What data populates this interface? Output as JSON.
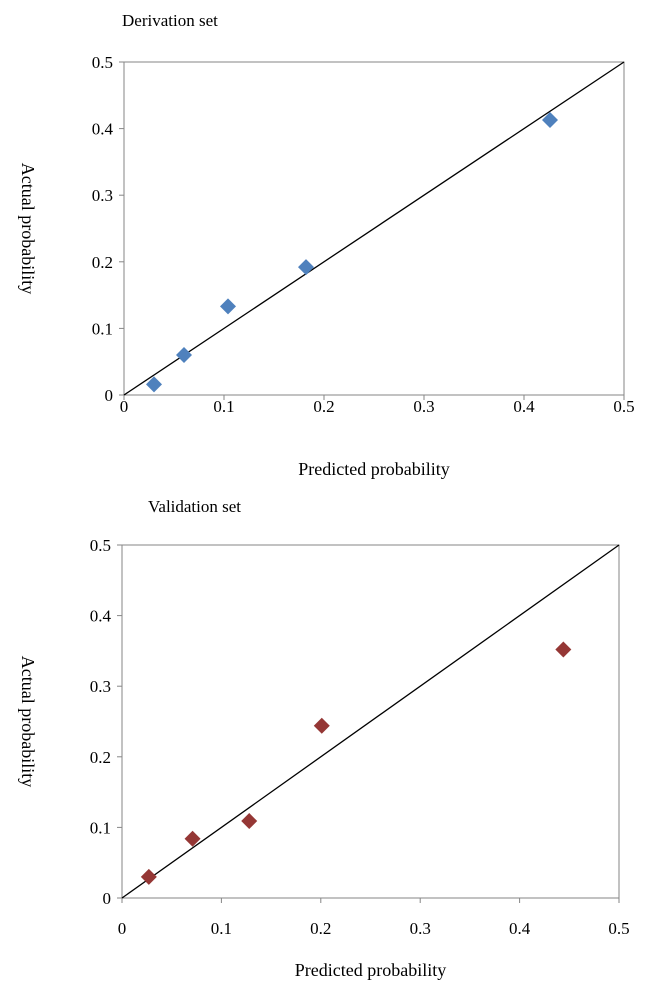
{
  "chart_data": [
    {
      "type": "scatter",
      "title": "Derivation set",
      "xlabel": "Predicted probability",
      "ylabel": "Actual probability",
      "xlim": [
        0,
        0.5
      ],
      "ylim": [
        0,
        0.5
      ],
      "xticks": [
        "0",
        "0.1",
        "0.2",
        "0.3",
        "0.4",
        "0.5"
      ],
      "yticks": [
        "0",
        "0.1",
        "0.2",
        "0.3",
        "0.4",
        "0.5"
      ],
      "grid": false,
      "reference_line": {
        "x": [
          0,
          0.5
        ],
        "y": [
          0,
          0.5
        ],
        "color": "#000000"
      },
      "series": [
        {
          "marker": "diamond",
          "color": "#4f81bd",
          "x": [
            0.03,
            0.06,
            0.104,
            0.182,
            0.426
          ],
          "y": [
            0.016,
            0.06,
            0.133,
            0.192,
            0.413
          ]
        }
      ]
    },
    {
      "type": "scatter",
      "title": "Validation set",
      "xlabel": "Predicted probability",
      "ylabel": "Actual probability",
      "xlim": [
        0,
        0.5
      ],
      "ylim": [
        0,
        0.5
      ],
      "xticks": [
        "0",
        "0.1",
        "0.2",
        "0.3",
        "0.4",
        "0.5"
      ],
      "yticks": [
        "0",
        "0.1",
        "0.2",
        "0.3",
        "0.4",
        "0.5"
      ],
      "grid": false,
      "reference_line": {
        "x": [
          0,
          0.5
        ],
        "y": [
          0,
          0.5
        ],
        "color": "#000000"
      },
      "series": [
        {
          "marker": "diamond",
          "color": "#953735",
          "x": [
            0.027,
            0.071,
            0.128,
            0.201,
            0.444
          ],
          "y": [
            0.03,
            0.084,
            0.109,
            0.244,
            0.352
          ]
        }
      ]
    }
  ]
}
